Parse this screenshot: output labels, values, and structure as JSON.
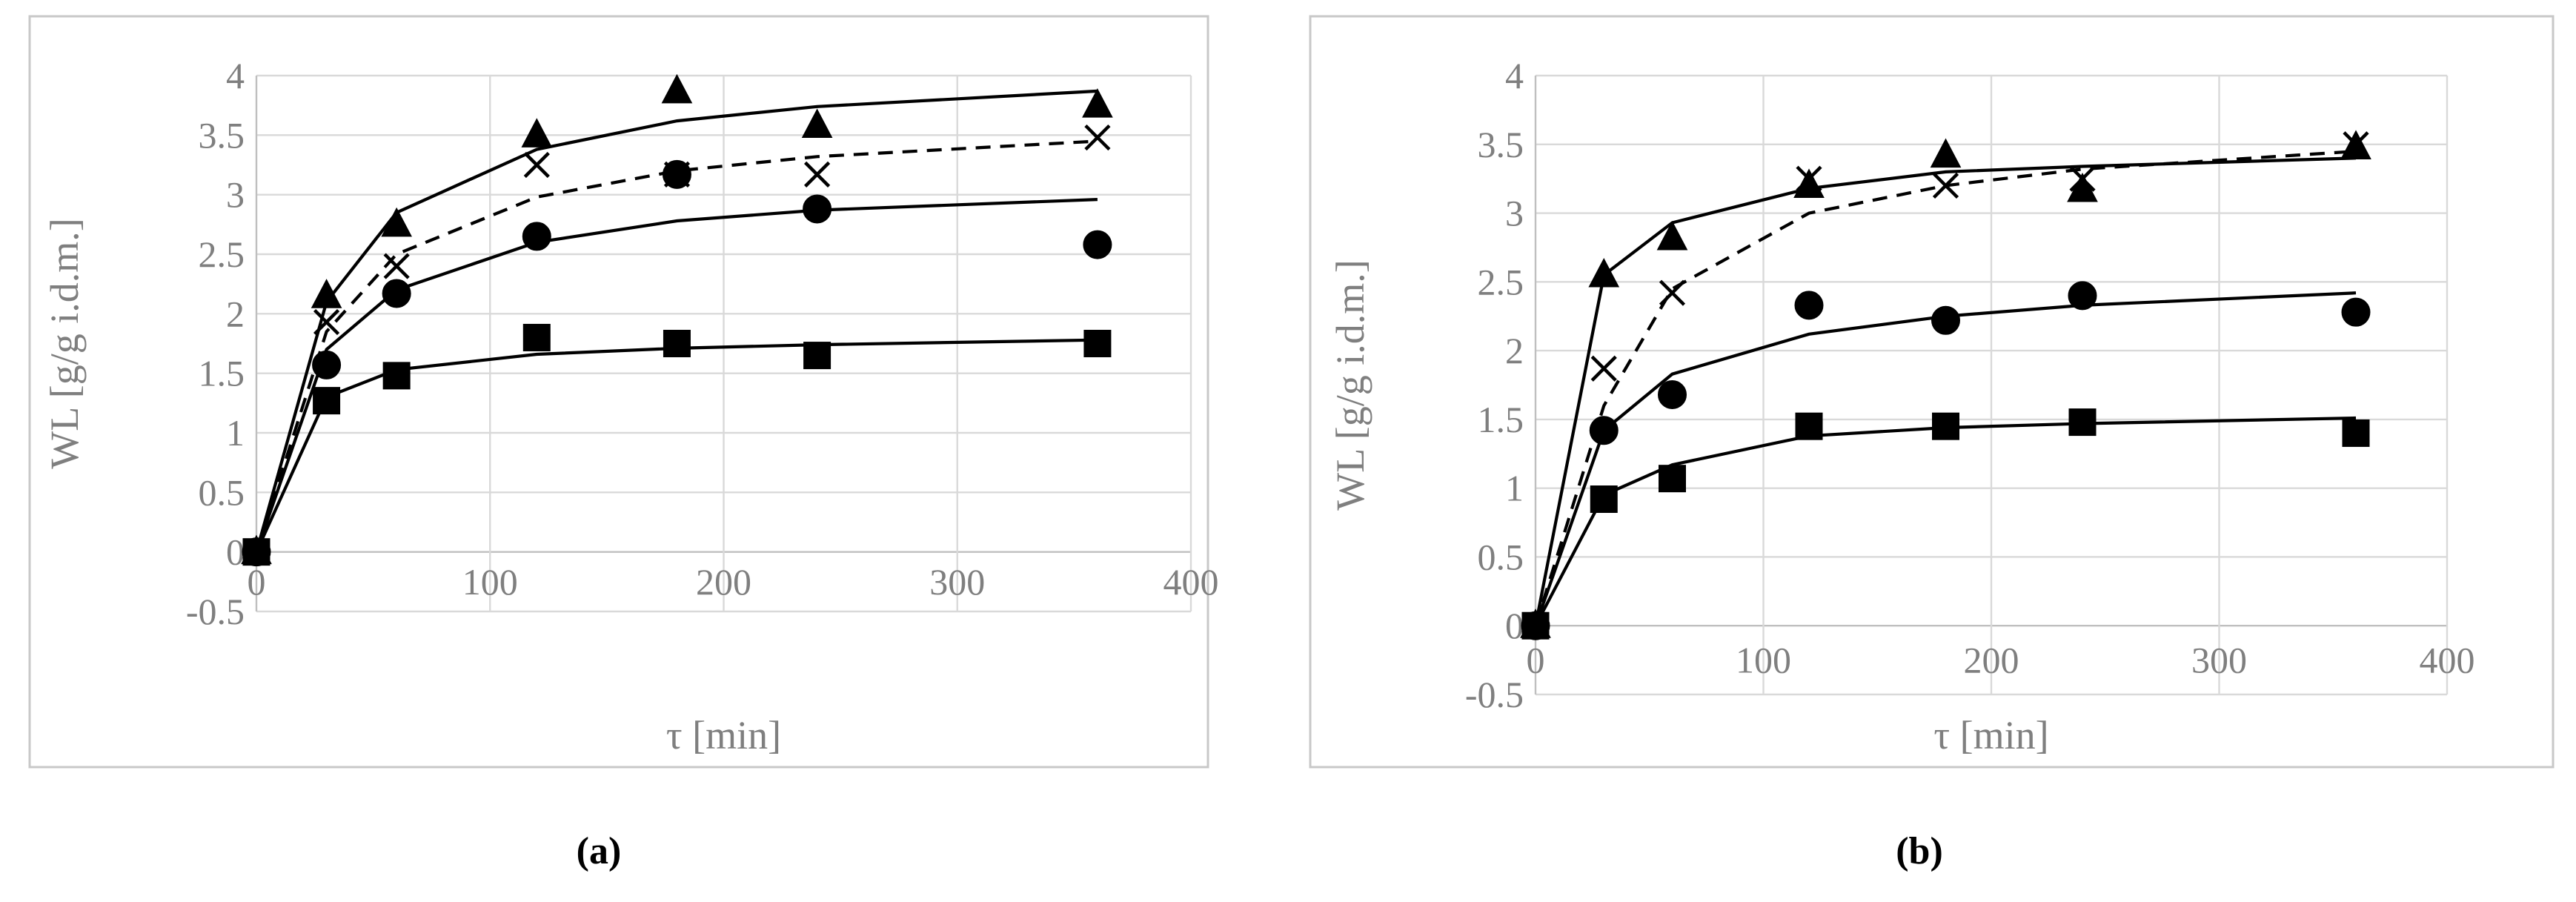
{
  "chart_data": [
    {
      "type": "scatter",
      "caption": "(a)",
      "xlabel": "τ [min]",
      "ylabel": "WL [g/g i.d.m.]",
      "xlim": [
        0,
        400
      ],
      "ylim": [
        -0.5,
        4
      ],
      "xticks": [
        0,
        100,
        200,
        300,
        400
      ],
      "yticks": [
        -0.5,
        0,
        0.5,
        1,
        1.5,
        2,
        2.5,
        3,
        3.5,
        4
      ],
      "grid": true,
      "series": [
        {
          "marker": "triangle",
          "points": [
            [
              0,
              0
            ],
            [
              30,
              2.15
            ],
            [
              60,
              2.75
            ],
            [
              120,
              3.5
            ],
            [
              180,
              3.87
            ],
            [
              240,
              3.58
            ],
            [
              360,
              3.75
            ]
          ],
          "fit": [
            [
              0,
              0
            ],
            [
              30,
              2.1
            ],
            [
              60,
              2.85
            ],
            [
              120,
              3.38
            ],
            [
              180,
              3.62
            ],
            [
              240,
              3.74
            ],
            [
              360,
              3.87
            ]
          ],
          "fit_style": "solid"
        },
        {
          "marker": "cross",
          "points": [
            [
              0,
              0
            ],
            [
              30,
              1.93
            ],
            [
              60,
              2.4
            ],
            [
              120,
              3.25
            ],
            [
              180,
              3.17
            ],
            [
              240,
              3.17
            ],
            [
              360,
              3.48
            ]
          ],
          "fit": [
            [
              0,
              0
            ],
            [
              30,
              1.85
            ],
            [
              60,
              2.5
            ],
            [
              120,
              2.98
            ],
            [
              180,
              3.2
            ],
            [
              240,
              3.32
            ],
            [
              360,
              3.45
            ]
          ],
          "fit_style": "dashed"
        },
        {
          "marker": "circle",
          "points": [
            [
              0,
              0
            ],
            [
              30,
              1.57
            ],
            [
              60,
              2.17
            ],
            [
              120,
              2.65
            ],
            [
              180,
              3.17
            ],
            [
              240,
              2.88
            ],
            [
              360,
              2.58
            ]
          ],
          "fit": [
            [
              0,
              0
            ],
            [
              30,
              1.7
            ],
            [
              60,
              2.2
            ],
            [
              120,
              2.6
            ],
            [
              180,
              2.78
            ],
            [
              240,
              2.87
            ],
            [
              360,
              2.96
            ]
          ],
          "fit_style": "solid"
        },
        {
          "marker": "square",
          "points": [
            [
              0,
              0
            ],
            [
              30,
              1.27
            ],
            [
              60,
              1.48
            ],
            [
              120,
              1.8
            ],
            [
              180,
              1.75
            ],
            [
              240,
              1.65
            ],
            [
              360,
              1.75
            ]
          ],
          "fit": [
            [
              0,
              0
            ],
            [
              30,
              1.3
            ],
            [
              60,
              1.53
            ],
            [
              120,
              1.66
            ],
            [
              180,
              1.71
            ],
            [
              240,
              1.74
            ],
            [
              360,
              1.78
            ]
          ],
          "fit_style": "solid"
        }
      ]
    },
    {
      "type": "scatter",
      "caption": "(b)",
      "xlabel": "τ [min]",
      "ylabel": "WL [g/g i.d.m.]",
      "xlim": [
        0,
        400
      ],
      "ylim": [
        -0.5,
        4
      ],
      "xticks": [
        0,
        100,
        200,
        300,
        400
      ],
      "yticks": [
        -0.5,
        0,
        0.5,
        1,
        1.5,
        2,
        2.5,
        3,
        3.5,
        4
      ],
      "grid": true,
      "series": [
        {
          "marker": "triangle",
          "points": [
            [
              0,
              0
            ],
            [
              30,
              2.55
            ],
            [
              60,
              2.82
            ],
            [
              120,
              3.2
            ],
            [
              180,
              3.42
            ],
            [
              240,
              3.17
            ],
            [
              360,
              3.48
            ]
          ],
          "fit": [
            [
              0,
              0
            ],
            [
              30,
              2.55
            ],
            [
              60,
              2.93
            ],
            [
              120,
              3.18
            ],
            [
              180,
              3.3
            ],
            [
              240,
              3.34
            ],
            [
              360,
              3.4
            ]
          ],
          "fit_style": "solid"
        },
        {
          "marker": "cross",
          "points": [
            [
              0,
              0
            ],
            [
              30,
              1.87
            ],
            [
              60,
              2.42
            ],
            [
              120,
              3.25
            ],
            [
              180,
              3.2
            ],
            [
              240,
              3.25
            ],
            [
              360,
              3.5
            ]
          ],
          "fit": [
            [
              0,
              0
            ],
            [
              30,
              1.6
            ],
            [
              60,
              2.45
            ],
            [
              120,
              3.0
            ],
            [
              180,
              3.2
            ],
            [
              240,
              3.32
            ],
            [
              360,
              3.45
            ]
          ],
          "fit_style": "dashed"
        },
        {
          "marker": "circle",
          "points": [
            [
              0,
              0
            ],
            [
              30,
              1.42
            ],
            [
              60,
              1.68
            ],
            [
              120,
              2.33
            ],
            [
              180,
              2.22
            ],
            [
              240,
              2.4
            ],
            [
              360,
              2.28
            ]
          ],
          "fit": [
            [
              0,
              0
            ],
            [
              30,
              1.42
            ],
            [
              60,
              1.83
            ],
            [
              120,
              2.12
            ],
            [
              180,
              2.25
            ],
            [
              240,
              2.33
            ],
            [
              360,
              2.42
            ]
          ],
          "fit_style": "solid"
        },
        {
          "marker": "square",
          "points": [
            [
              0,
              0
            ],
            [
              30,
              0.92
            ],
            [
              60,
              1.07
            ],
            [
              120,
              1.45
            ],
            [
              180,
              1.45
            ],
            [
              240,
              1.48
            ],
            [
              360,
              1.4
            ]
          ],
          "fit": [
            [
              0,
              0
            ],
            [
              30,
              0.95
            ],
            [
              60,
              1.17
            ],
            [
              120,
              1.38
            ],
            [
              180,
              1.44
            ],
            [
              240,
              1.47
            ],
            [
              360,
              1.51
            ]
          ],
          "fit_style": "solid"
        }
      ]
    }
  ]
}
